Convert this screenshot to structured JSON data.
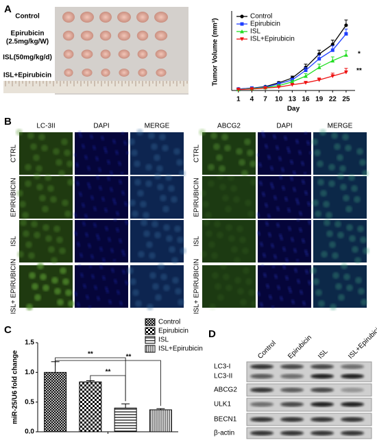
{
  "panels": {
    "a": "A",
    "b": "B",
    "c": "C",
    "d": "D"
  },
  "photo": {
    "labels": [
      "Control",
      "Epirubicin",
      "(2.5mg/kg/W)",
      "ISL(50mg/kg/d)",
      "ISL+Epirubicin"
    ]
  },
  "immuno": {
    "left_columns": [
      "LC-3II",
      "DAPI",
      "MERGE"
    ],
    "right_columns": [
      "ABCG2",
      "DAPI",
      "MERGE"
    ],
    "rows": [
      "CTRL",
      "EPIRUBICIN",
      "ISL",
      "ISL+ EPIRUBICIN"
    ]
  },
  "western": {
    "lanes": [
      "Control",
      "Epirubicin",
      "ISL",
      "ISL+Epirubicin"
    ],
    "bands": [
      "LC3-I",
      "LC3-II",
      "ABCG2",
      "ULK1",
      "BECN1",
      "β-actin"
    ]
  },
  "chart_data": [
    {
      "type": "line",
      "y_label": "Tumor Volume (mm³)",
      "x_label": "Day",
      "x": [
        1,
        4,
        7,
        10,
        13,
        16,
        19,
        22,
        25
      ],
      "xlim": [
        -0.5,
        27
      ],
      "xticks": [
        1,
        4,
        7,
        10,
        13,
        16,
        19,
        22,
        25
      ],
      "ylim": [
        0,
        800
      ],
      "series": [
        {
          "name": "Control",
          "color": "#000000",
          "marker": "circle",
          "values": [
            15,
            25,
            40,
            80,
            130,
            240,
            380,
            480,
            680
          ],
          "errors": [
            3,
            5,
            8,
            12,
            20,
            35,
            40,
            45,
            55
          ]
        },
        {
          "name": "Epirubicin",
          "color": "#1f3fff",
          "marker": "square",
          "values": [
            15,
            25,
            35,
            70,
            110,
            210,
            330,
            420,
            590
          ],
          "errors": [
            3,
            5,
            7,
            12,
            18,
            30,
            40,
            45,
            50
          ]
        },
        {
          "name": "ISL",
          "color": "#22dd22",
          "marker": "triangle",
          "values": [
            10,
            20,
            30,
            50,
            90,
            150,
            240,
            310,
            370
          ],
          "errors": [
            3,
            4,
            6,
            10,
            15,
            25,
            35,
            40,
            45
          ]
        },
        {
          "name": "ISL+Epirubicin",
          "color": "#ee1111",
          "marker": "triangle-down",
          "values": [
            10,
            15,
            25,
            35,
            60,
            80,
            110,
            150,
            190
          ],
          "errors": [
            2,
            3,
            5,
            8,
            12,
            15,
            20,
            30,
            40
          ]
        }
      ],
      "annotations": [
        "*",
        "**"
      ]
    },
    {
      "type": "bar",
      "y_label": "miR-25/U6 fold change",
      "categories": [
        "Control",
        "Epirubicin",
        "ISL",
        "ISL+Epirubicin"
      ],
      "values": [
        1.0,
        0.84,
        0.4,
        0.37
      ],
      "errors": [
        0.18,
        0.02,
        0.07,
        0.02
      ],
      "ylim": [
        0,
        1.5
      ],
      "yticks": [
        {
          "value": 0,
          "label": "0.0"
        },
        {
          "value": 0.5,
          "label": "0.5"
        },
        {
          "value": 1,
          "label": "1.0"
        },
        {
          "value": 1.5,
          "label": "1.5"
        }
      ],
      "annotations": [
        "**",
        "**",
        "**"
      ]
    }
  ]
}
